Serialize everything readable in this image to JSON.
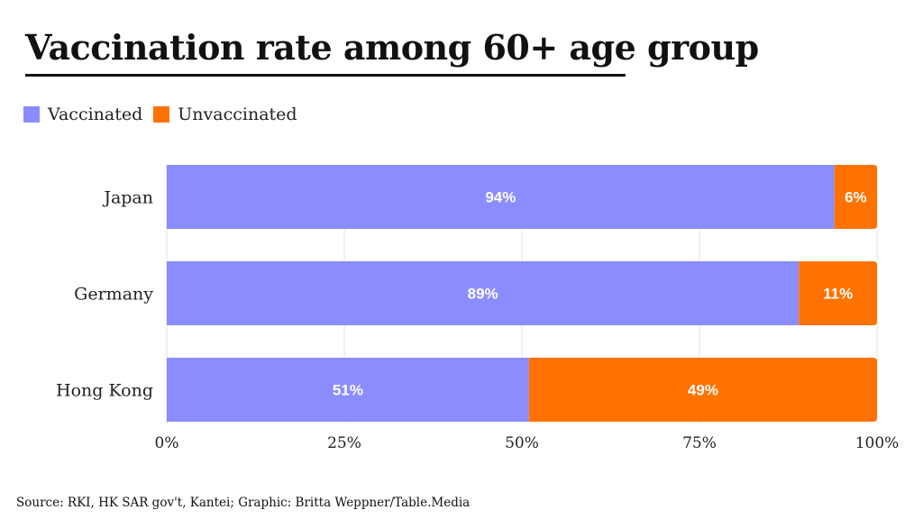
{
  "title": "Vaccination rate among 60+ age group",
  "legend": [
    {
      "label": "Vaccinated",
      "color": "#8b8cfd"
    },
    {
      "label": "Unvaccinated",
      "color": "#ff7200"
    }
  ],
  "source": "Source: RKI, HK SAR gov't, Kantei; Graphic: Britta Weppner/Table.Media",
  "chart_data": {
    "type": "bar",
    "orientation": "horizontal",
    "stacked": true,
    "categories": [
      "Japan",
      "Germany",
      "Hong Kong"
    ],
    "series": [
      {
        "name": "Vaccinated",
        "color": "#8b8cfd",
        "values": [
          94,
          89,
          51
        ],
        "labels": [
          "94%",
          "89%",
          "51%"
        ]
      },
      {
        "name": "Unvaccinated",
        "color": "#ff7200",
        "values": [
          6,
          11,
          49
        ],
        "labels": [
          "6%",
          "11%",
          "49%"
        ]
      }
    ],
    "xlim": [
      0,
      100
    ],
    "xticks": [
      {
        "value": 0,
        "label": "0%"
      },
      {
        "value": 25,
        "label": "25%"
      },
      {
        "value": 50,
        "label": "50%"
      },
      {
        "value": 75,
        "label": "75%"
      },
      {
        "value": 100,
        "label": "100%"
      }
    ],
    "grid": true,
    "legend_position": "top-left"
  }
}
